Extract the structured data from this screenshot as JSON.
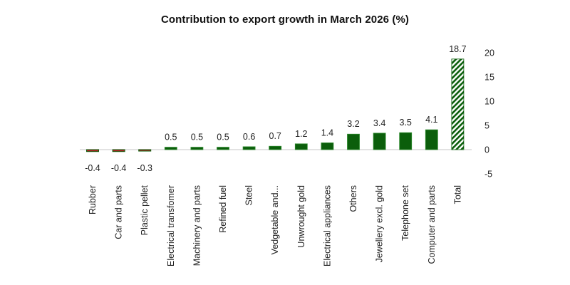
{
  "chart_data": {
    "type": "bar",
    "title": "Contribution to export growth in March 2026 (%)",
    "xlabel": "",
    "ylabel": "",
    "ylim": [
      -5,
      20
    ],
    "yticks": [
      20,
      15,
      10,
      5,
      0,
      -5
    ],
    "y_axis_position": "right",
    "grid": false,
    "legend": "none",
    "categories": [
      "Rubber",
      "Car and parts",
      "Plastic pellet",
      "Electrical transfomer",
      "Machinery and parts",
      "Refined fuel",
      "Steel",
      "Vedgetable and...",
      "Unwrought gold",
      "Electrical appliances",
      "Others",
      "Jewellery excl. gold",
      "Telephone set",
      "Computer and parts",
      "Total"
    ],
    "values": [
      -0.4,
      -0.4,
      -0.3,
      0.5,
      0.5,
      0.5,
      0.6,
      0.7,
      1.2,
      1.4,
      3.2,
      3.4,
      3.5,
      4.1,
      18.7
    ],
    "data_labels": [
      "-0.4",
      "-0.4",
      "-0.3",
      "0.5",
      "0.5",
      "0.5",
      "0.6",
      "0.7",
      "1.2",
      "1.4",
      "3.2",
      "3.4",
      "3.5",
      "4.1",
      "18.7"
    ],
    "colors": {
      "positive": "#0b5e0b",
      "negative": "#b22222",
      "bar_edge": "#2e8b2e",
      "total_hatch": "#0b5e0b",
      "baseline": "#d0d0d0"
    },
    "total_style": "hatched"
  }
}
